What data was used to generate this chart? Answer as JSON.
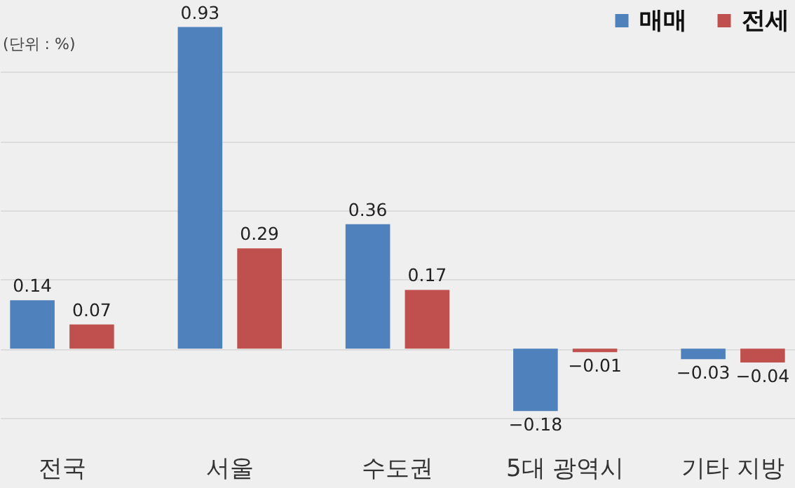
{
  "chart_data": {
    "type": "bar",
    "annotations": [
      "(단위 : %)"
    ],
    "categories": [
      "전국",
      "서울",
      "수도권",
      "5대 광역시",
      "기타 지방"
    ],
    "series": [
      {
        "name": "매매",
        "color": "#4f81bd",
        "values": [
          0.14,
          0.93,
          0.36,
          -0.18,
          -0.03
        ]
      },
      {
        "name": "전세",
        "color": "#c0504d",
        "values": [
          0.07,
          0.29,
          0.17,
          -0.01,
          -0.04
        ]
      }
    ],
    "yticks": [
      -0.2,
      0,
      0.2,
      0.4,
      0.6,
      0.8
    ],
    "grid": "y",
    "tick_labels": "x",
    "legend": "top right",
    "data_labels": true
  }
}
